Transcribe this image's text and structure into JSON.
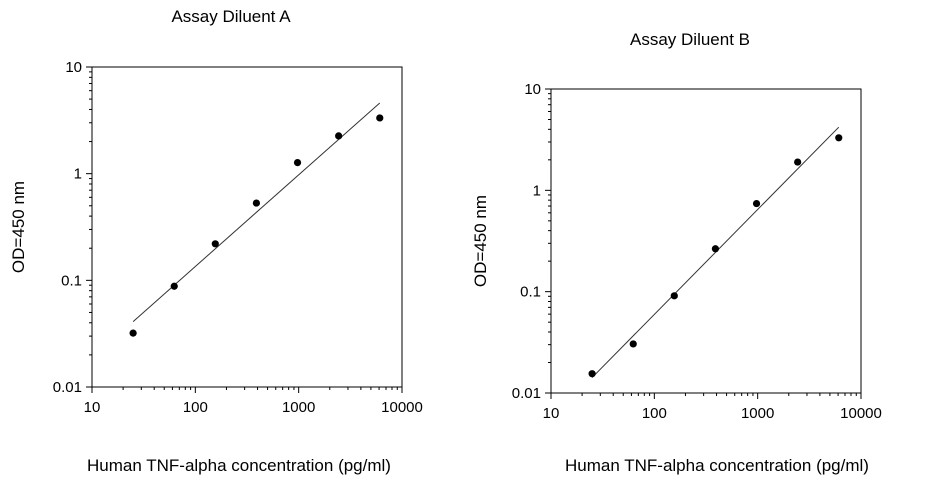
{
  "chart_data": [
    {
      "type": "scatter",
      "title": "Assay Diluent A",
      "xlabel": "Human TNF-alpha concentration (pg/ml)",
      "ylabel": "OD=450 nm",
      "x_scale": "log",
      "y_scale": "log",
      "xlim": [
        10,
        10000
      ],
      "ylim": [
        0.01,
        10
      ],
      "x_ticks": [
        "10",
        "100",
        "1000",
        "10000"
      ],
      "y_ticks": [
        "0.01",
        "0.1",
        "1",
        "10"
      ],
      "grid": false,
      "series": [
        {
          "x": [
            25,
            62.5,
            156,
            390,
            975,
            2437,
            6094
          ],
          "y": [
            0.032,
            0.088,
            0.22,
            0.53,
            1.27,
            2.26,
            3.33
          ]
        }
      ],
      "fit_line": {
        "x": [
          25,
          6094
        ],
        "y": [
          0.041,
          4.6
        ]
      }
    },
    {
      "type": "scatter",
      "title": "Assay Diluent B",
      "xlabel": "Human TNF-alpha concentration (pg/ml)",
      "ylabel": "OD=450 nm",
      "x_scale": "log",
      "y_scale": "log",
      "xlim": [
        10,
        10000
      ],
      "ylim": [
        0.01,
        10
      ],
      "x_ticks": [
        "10",
        "100",
        "1000",
        "10000"
      ],
      "y_ticks": [
        "0.01",
        "0.1",
        "1",
        "10"
      ],
      "grid": false,
      "series": [
        {
          "x": [
            25,
            62.5,
            156,
            390,
            975,
            2437,
            6094
          ],
          "y": [
            0.0155,
            0.0305,
            0.091,
            0.265,
            0.74,
            1.9,
            3.3
          ]
        }
      ],
      "fit_line": {
        "x": [
          25,
          6094
        ],
        "y": [
          0.0142,
          4.2
        ]
      }
    }
  ]
}
